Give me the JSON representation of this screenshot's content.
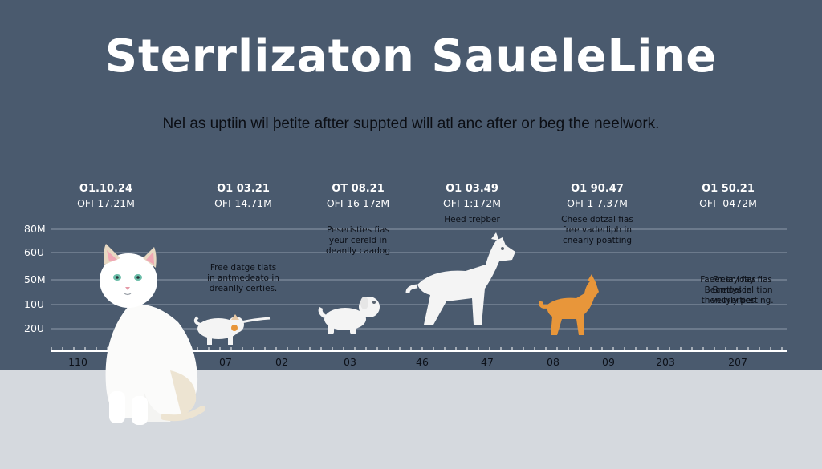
{
  "colors": {
    "background": "#4a5a6e",
    "floor": "#d5d9de",
    "title": "#ffffff",
    "cat": "#ffffff",
    "dog_orange": "#e8963a"
  },
  "chart_data": {
    "type": "timeline",
    "title": "Sterrlizaton SaueleLine",
    "subtitle": "Nel as uptiin wil þetite aftter suppted will atl anc after or beg the neelwork.",
    "y_ticks": [
      "80M",
      "60U",
      "50M",
      "10U",
      "20U"
    ],
    "x_ticks": [
      "110",
      "07",
      "02",
      "03",
      "46",
      "47",
      "08",
      "09",
      "203",
      "207"
    ],
    "grid": true,
    "events": [
      {
        "date": "O1.10.24",
        "value": "OFI-17.21M",
        "note": []
      },
      {
        "date": "O1 03.21",
        "value": "OFI-14.71M",
        "note": [
          "Free datge tiats",
          "in antmedeato in",
          "dreanlly certies."
        ]
      },
      {
        "date": "OT 08.21",
        "value": "OFI-16 17zM",
        "note": [
          "Peseristies fias",
          "yeur cereld in",
          "deanlly caadog"
        ]
      },
      {
        "date": "O1 03.49",
        "value": "OFI-1:172M",
        "note": [
          "Heed treþber"
        ]
      },
      {
        "date": "O1 90.47",
        "value": "OFI-1 7.37M",
        "note": [
          "Chese dotzal fias",
          "free vaderliph in",
          "cneariy poatting"
        ]
      },
      {
        "date": "O1 50.21",
        "value": "OFI- 0472M",
        "note": [
          "Faeer lay fias",
          "Becrnoal in",
          "then fyerties"
        ]
      },
      {
        "date": "",
        "value": "",
        "note": [
          "Freer loay fias",
          "Bretlyscel tion",
          "veurly perting."
        ]
      }
    ],
    "illustrations": [
      "white-cat",
      "white-kitten",
      "white-puppy",
      "white-dog",
      "orange-dog"
    ]
  }
}
